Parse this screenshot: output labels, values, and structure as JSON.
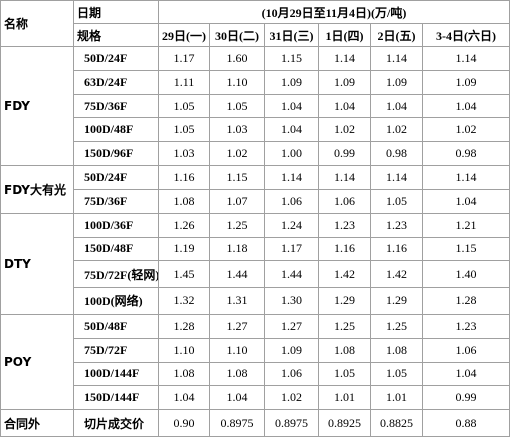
{
  "header": {
    "name": "名称",
    "date": "日期",
    "range": "(10月29日至11月4日)(万/吨)",
    "spec": "规格",
    "days": [
      "29日(一)",
      "30日(二)",
      "31日(三)",
      "1日(四)",
      "2日(五)",
      "3-4日(六日)"
    ]
  },
  "groups": [
    {
      "name": "FDY",
      "rows": [
        {
          "spec": "50D/24F",
          "values": [
            "1.17",
            "1.60",
            "1.15",
            "1.14",
            "1.14",
            "1.14"
          ]
        },
        {
          "spec": "63D/24F",
          "values": [
            "1.11",
            "1.10",
            "1.09",
            "1.09",
            "1.09",
            "1.09"
          ]
        },
        {
          "spec": "75D/36F",
          "values": [
            "1.05",
            "1.05",
            "1.04",
            "1.04",
            "1.04",
            "1.04"
          ]
        },
        {
          "spec": "100D/48F",
          "values": [
            "1.05",
            "1.03",
            "1.04",
            "1.02",
            "1.02",
            "1.02"
          ]
        },
        {
          "spec": "150D/96F",
          "values": [
            "1.03",
            "1.02",
            "1.00",
            "0.99",
            "0.98",
            "0.98"
          ]
        }
      ]
    },
    {
      "name": "FDY大有光",
      "rows": [
        {
          "spec": "50D/24F",
          "values": [
            "1.16",
            "1.15",
            "1.14",
            "1.14",
            "1.14",
            "1.14"
          ]
        },
        {
          "spec": "75D/36F",
          "values": [
            "1.08",
            "1.07",
            "1.06",
            "1.06",
            "1.05",
            "1.04"
          ]
        }
      ]
    },
    {
      "name": "DTY",
      "rows": [
        {
          "spec": "100D/36F",
          "values": [
            "1.26",
            "1.25",
            "1.24",
            "1.23",
            "1.23",
            "1.21"
          ]
        },
        {
          "spec": "150D/48F",
          "values": [
            "1.19",
            "1.18",
            "1.17",
            "1.16",
            "1.16",
            "1.15"
          ]
        },
        {
          "spec": "75D/72F(轻网)",
          "values": [
            "1.45",
            "1.44",
            "1.44",
            "1.42",
            "1.42",
            "1.40"
          ]
        },
        {
          "spec": "100D(网络)",
          "values": [
            "1.32",
            "1.31",
            "1.30",
            "1.29",
            "1.29",
            "1.28"
          ]
        }
      ]
    },
    {
      "name": "POY",
      "rows": [
        {
          "spec": "50D/48F",
          "values": [
            "1.28",
            "1.27",
            "1.27",
            "1.25",
            "1.25",
            "1.23"
          ]
        },
        {
          "spec": "75D/72F",
          "values": [
            "1.10",
            "1.10",
            "1.09",
            "1.08",
            "1.08",
            "1.06"
          ]
        },
        {
          "spec": "100D/144F",
          "values": [
            "1.08",
            "1.08",
            "1.06",
            "1.05",
            "1.05",
            "1.04"
          ]
        },
        {
          "spec": "150D/144F",
          "values": [
            "1.04",
            "1.04",
            "1.02",
            "1.01",
            "1.01",
            "0.99"
          ]
        }
      ]
    },
    {
      "name": "合同外",
      "rows": [
        {
          "spec": "切片成交价",
          "values": [
            "0.90",
            "0.8975",
            "0.8975",
            "0.8925",
            "0.8825",
            "0.88"
          ]
        }
      ]
    }
  ]
}
